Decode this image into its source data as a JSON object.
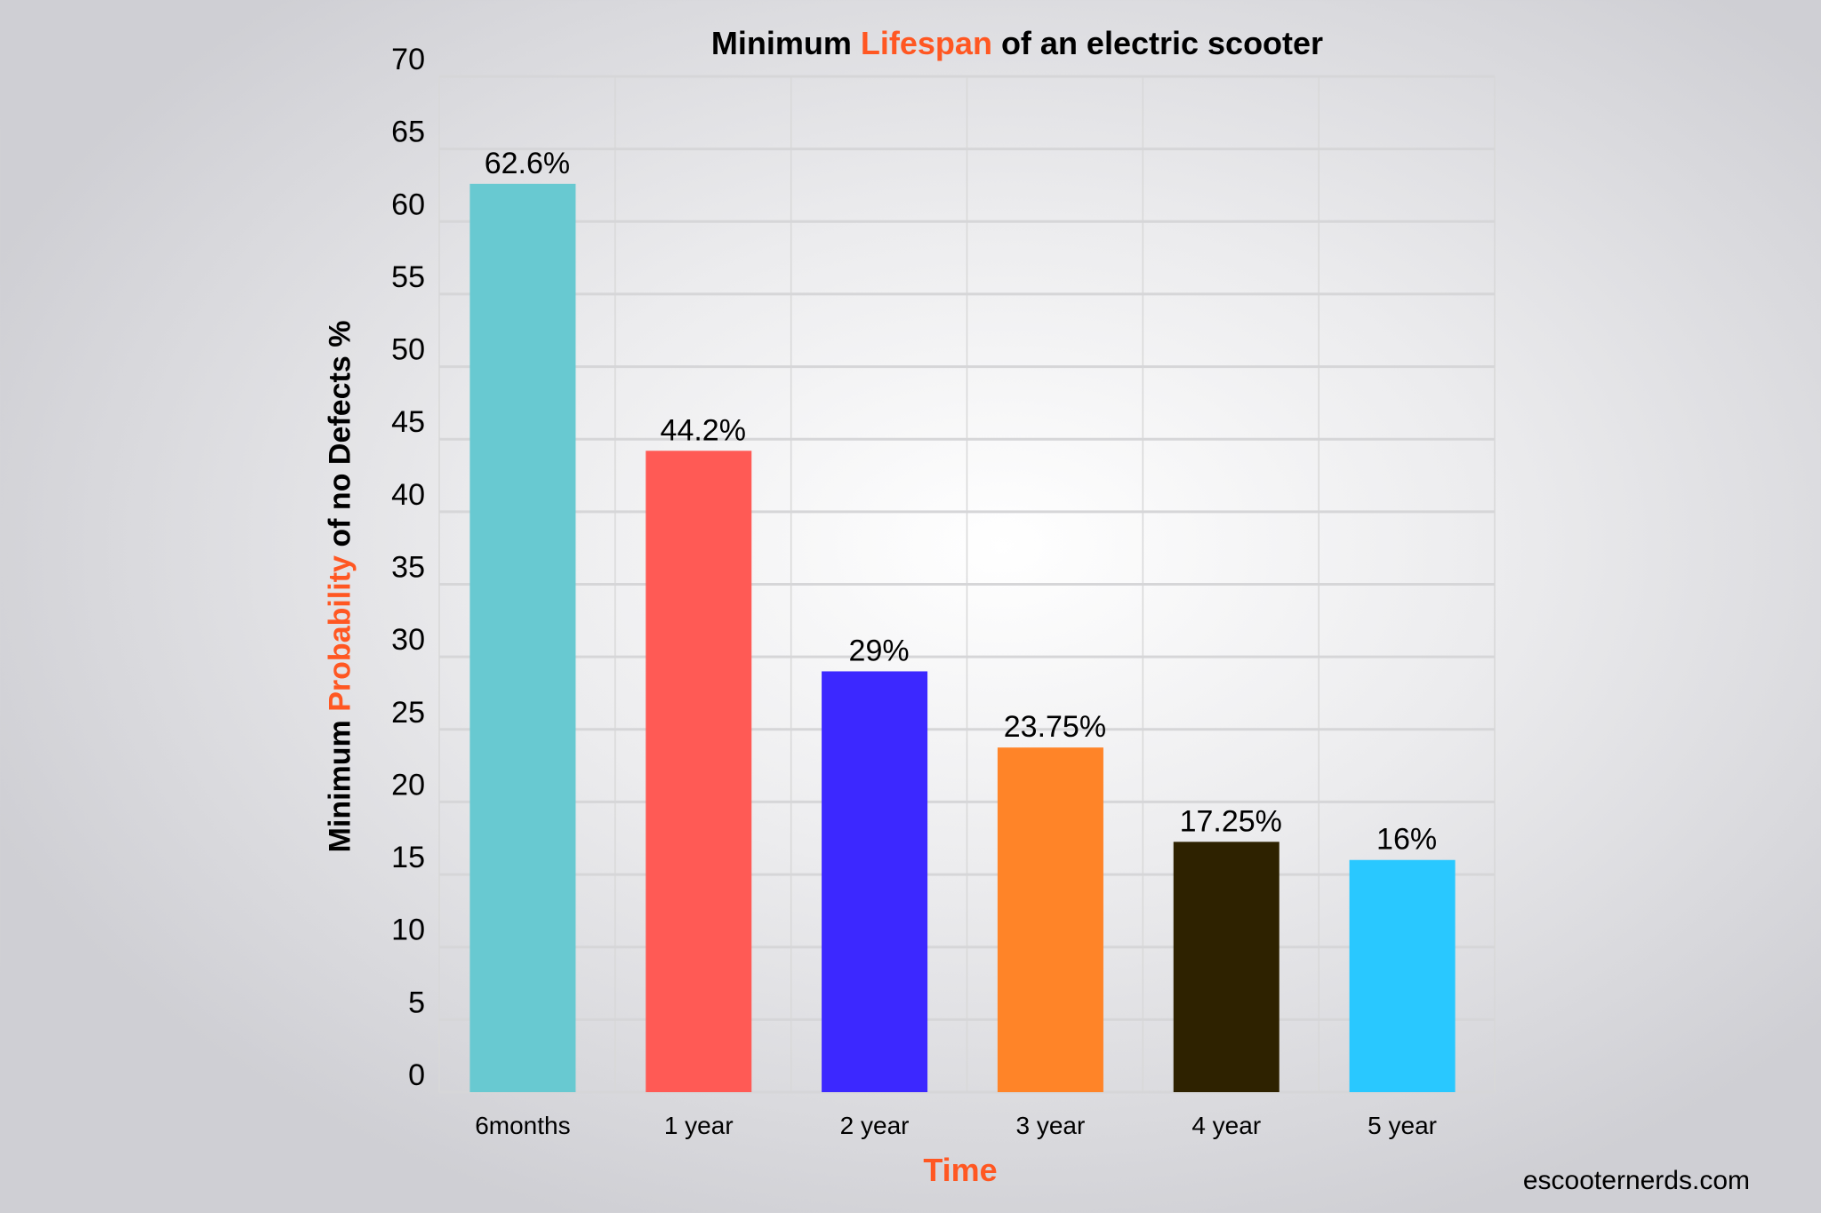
{
  "chart_data": {
    "type": "bar",
    "title_parts": [
      "Minimum ",
      "Lifespan",
      " of an electric scooter"
    ],
    "ylabel_parts": [
      "Minimum ",
      "Probability",
      " of no Defects %"
    ],
    "xlabel": "Time",
    "categories": [
      "6months",
      "1 year",
      "2 year",
      "3 year",
      "4 year",
      "5 year"
    ],
    "values": [
      62.6,
      44.2,
      29,
      23.75,
      17.25,
      16
    ],
    "data_labels": [
      "62.6%",
      "44.2%",
      "29%",
      "23.75%",
      "17.25%",
      "16%"
    ],
    "colors": [
      "#68c9d1",
      "#ff5a55",
      "#3c28ff",
      "#ff8428",
      "#2e2200",
      "#29c8ff"
    ],
    "ylim": [
      0,
      70
    ],
    "yticks": [
      0,
      5,
      10,
      15,
      20,
      25,
      30,
      35,
      40,
      45,
      50,
      55,
      60,
      65,
      70
    ],
    "grid": true,
    "accent_color": "#ff5722"
  },
  "watermark": "escooternerds.com"
}
